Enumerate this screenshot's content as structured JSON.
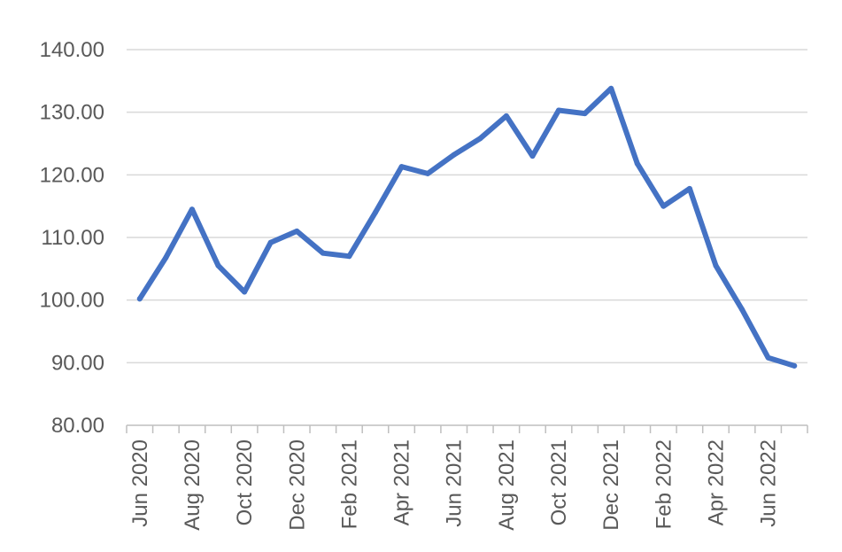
{
  "chart_data": {
    "type": "line",
    "title": "",
    "xlabel": "",
    "ylabel": "",
    "ylim": [
      80,
      140
    ],
    "yticks": [
      "80.00",
      "90.00",
      "100.00",
      "110.00",
      "120.00",
      "130.00",
      "140.00"
    ],
    "x": [
      "Jun 2020",
      "Jul 2020",
      "Aug 2020",
      "Sep 2020",
      "Oct 2020",
      "Nov 2020",
      "Dec 2020",
      "Jan 2021",
      "Feb 2021",
      "Mar 2021",
      "Apr 2021",
      "May 2021",
      "Jun 2021",
      "Jul 2021",
      "Aug 2021",
      "Sep 2021",
      "Oct 2021",
      "Nov 2021",
      "Dec 2021",
      "Jan 2022",
      "Feb 2022",
      "Mar 2022",
      "Apr 2022",
      "May 2022",
      "Jun 2022",
      "Jul 2022"
    ],
    "xtick_labels_shown": [
      "Jun 2020",
      "Aug 2020",
      "Oct 2020",
      "Dec 2020",
      "Feb 2021",
      "Apr 2021",
      "Jun 2021",
      "Aug 2021",
      "Oct 2021",
      "Dec 2021",
      "Feb 2022",
      "Apr 2022",
      "Jun 2022"
    ],
    "grid": true,
    "series": [
      {
        "color": "#4472c4",
        "values": [
          100.2,
          106.8,
          114.5,
          105.5,
          101.3,
          109.2,
          111.0,
          107.5,
          107.0,
          114.0,
          121.3,
          120.2,
          123.2,
          125.8,
          129.4,
          123.0,
          130.3,
          129.8,
          133.8,
          121.8,
          115.0,
          117.8,
          105.5,
          98.5,
          90.8,
          89.5
        ]
      }
    ]
  }
}
